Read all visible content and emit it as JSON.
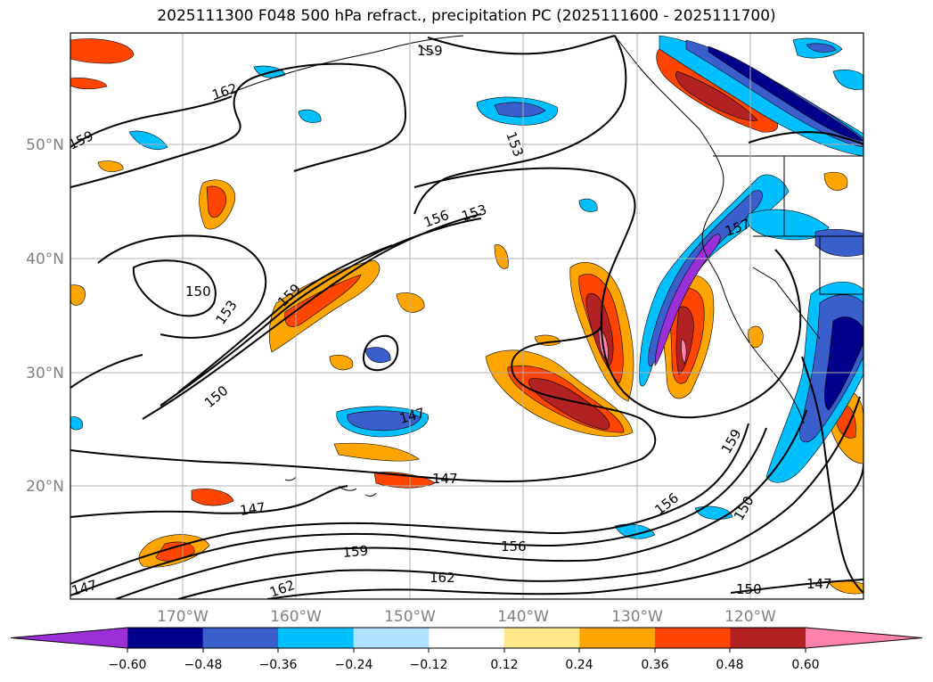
{
  "title": "2025111300 F048 500 hPa refract., precipitation PC (2025111600 - 2025111700)",
  "lat_labels": [
    "50°N",
    "40°N",
    "30°N",
    "20°N"
  ],
  "lon_labels": [
    "170°W",
    "160°W",
    "150°W",
    "140°W",
    "130°W",
    "120°W"
  ],
  "contour_labels": [
    "159",
    "162",
    "159",
    "153",
    "156",
    "153",
    "157",
    "150",
    "153",
    "159",
    "150",
    "147",
    "147",
    "147",
    "159",
    "156",
    "159",
    "162",
    "162",
    "156",
    "150",
    "150",
    "147",
    "147"
  ],
  "colorbar": {
    "ticks": [
      "−0.60",
      "−0.48",
      "−0.36",
      "−0.24",
      "−0.12",
      "0.12",
      "0.24",
      "0.36",
      "0.48",
      "0.60"
    ],
    "colors": [
      "#9b30d9",
      "#00008b",
      "#3a5fcd",
      "#00bfff",
      "#b0e2ff",
      "#ffffff",
      "#ffe88a",
      "#ffa500",
      "#ff4500",
      "#b22222",
      "#ff82ab"
    ]
  }
}
